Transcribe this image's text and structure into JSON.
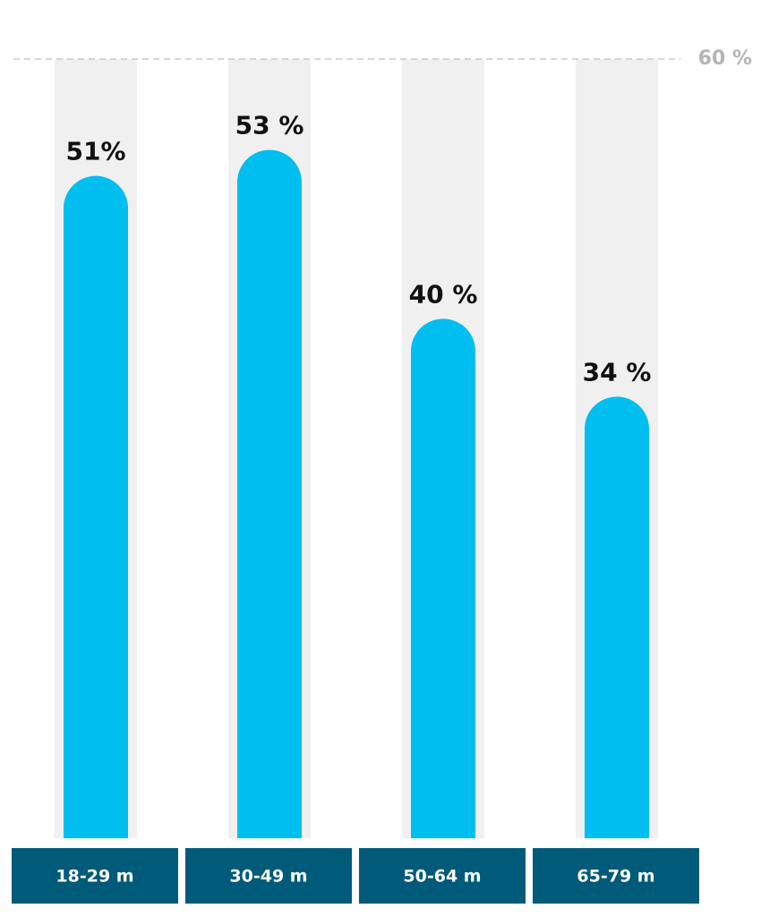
{
  "chart_data": {
    "type": "bar",
    "categories": [
      "18-29 m",
      "30-49 m",
      "50-64 m",
      "65-79 m"
    ],
    "values": [
      51,
      53,
      40,
      34
    ],
    "value_labels": [
      "51%",
      "53 %",
      "40 %",
      "34 %"
    ],
    "color": "#00bff0",
    "ylim": [
      0,
      60
    ],
    "yticks": [
      {
        "value": 60,
        "label": "60 %"
      }
    ],
    "grid": true
  }
}
